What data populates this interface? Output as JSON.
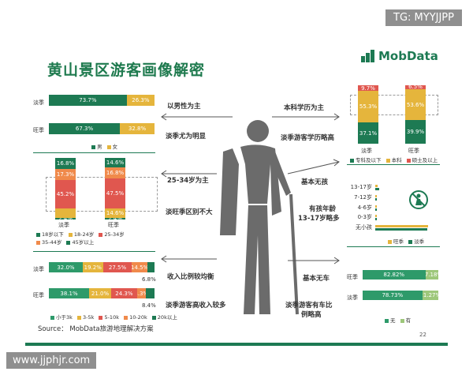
{
  "watermark_top": "TG: MYYJJPP",
  "watermark_bottom": "www.jjphjr.com",
  "title": "黄山景区游客画像解密",
  "logo_text": "MobData",
  "source": "Source： MobData旅游地理解决方案",
  "page_number": "22",
  "colors": {
    "green": "#1d7a53",
    "yellow": "#e5b53c",
    "red": "#e0574f",
    "orange": "#f08a4b",
    "lightgreen": "#9dc77a",
    "gray": "#888888",
    "teal": "#2e9a6a"
  },
  "notes": {
    "gender_main": "以男性为主",
    "gender_sub": "淡季尤为明显",
    "age_main": "25-34岁为主",
    "age_sub": "淡旺季区别不大",
    "income_main": "收入比例较均衡",
    "income_sub": "淡季游客高收入较多",
    "edu_main": "本科学历为主",
    "edu_sub": "淡季游客学历略高",
    "kids_main": "基本无孩",
    "kids_sub1": "有孩年龄",
    "kids_sub2": "13-17岁略多",
    "car_main": "基本无车",
    "car_sub1": "淡季游客有车比",
    "car_sub2": "例略高"
  },
  "chart_data": [
    {
      "type": "bar",
      "id": "gender",
      "orientation": "horizontal-stacked",
      "categories": [
        "淡季",
        "旺季"
      ],
      "series": [
        {
          "name": "男",
          "values": [
            73.7,
            67.3
          ],
          "labels": [
            "73.7%",
            "67.3%"
          ],
          "color": "#1d7a53"
        },
        {
          "name": "女",
          "values": [
            26.3,
            32.8
          ],
          "labels": [
            "26.3%",
            "32.8%"
          ],
          "color": "#e5b53c"
        }
      ]
    },
    {
      "type": "bar",
      "id": "age",
      "orientation": "vertical-stacked",
      "categories": [
        "淡季",
        "旺季"
      ],
      "series": [
        {
          "name": "18岁以下",
          "values": [
            2.4,
            2.4
          ],
          "labels": [
            "2.4%",
            "2.4%"
          ],
          "color": "#1d7a53"
        },
        {
          "name": "18-24岁",
          "values": [
            14.4,
            14.6
          ],
          "labels": [
            "",
            "14.6%"
          ],
          "color": "#e5b53c"
        },
        {
          "name": "25-34岁",
          "values": [
            45.2,
            47.5
          ],
          "labels": [
            "45.2%",
            "47.5%"
          ],
          "color": "#e0574f"
        },
        {
          "name": "35-44岁",
          "values": [
            17.3,
            16.8
          ],
          "labels": [
            "17.3%",
            "16.8%"
          ],
          "color": "#f08a4b"
        },
        {
          "name": "45岁以上",
          "values": [
            16.8,
            14.6
          ],
          "labels": [
            "16.8%",
            "14.6%"
          ],
          "color": "#1d7a53"
        }
      ]
    },
    {
      "type": "bar",
      "id": "income",
      "orientation": "horizontal-stacked",
      "categories": [
        "淡季",
        "旺季"
      ],
      "series": [
        {
          "name": "小于3k",
          "values": [
            32.0,
            38.1
          ],
          "labels": [
            "32.0%",
            "38.1%"
          ],
          "color": "#2e9a6a"
        },
        {
          "name": "3-5k",
          "values": [
            19.2,
            21.0
          ],
          "labels": [
            "19.2%",
            "21.0%"
          ],
          "color": "#e5b53c"
        },
        {
          "name": "5-10k",
          "values": [
            27.5,
            24.3
          ],
          "labels": [
            "27.5%",
            "24.3%"
          ],
          "color": "#e0574f"
        },
        {
          "name": "10-20k",
          "values": [
            14.5,
            8.3
          ],
          "labels": [
            "14.5%",
            "8.3%"
          ],
          "color": "#f08a4b"
        },
        {
          "name": "20k以上",
          "values": [
            6.8,
            8.4
          ],
          "labels": [
            "6.8%",
            "8.4%"
          ],
          "color": "#1d7a53"
        }
      ]
    },
    {
      "type": "bar",
      "id": "education",
      "orientation": "vertical-stacked",
      "categories": [
        "淡季",
        "旺季"
      ],
      "series": [
        {
          "name": "专科及以下",
          "values": [
            37.1,
            39.9
          ],
          "labels": [
            "37.1%",
            "39.9%"
          ],
          "color": "#1d7a53"
        },
        {
          "name": "本科",
          "values": [
            55.3,
            53.6
          ],
          "labels": [
            "55.3%",
            "53.6%"
          ],
          "color": "#e5b53c"
        },
        {
          "name": "硕士及以上",
          "values": [
            9.7,
            6.5
          ],
          "labels": [
            "9.7%",
            "6.5%"
          ],
          "color": "#e0574f"
        }
      ]
    },
    {
      "type": "bar",
      "id": "children",
      "orientation": "horizontal-grouped",
      "categories": [
        "13-17岁",
        "7-12岁",
        "4-6岁",
        "0-3岁",
        "无小孩"
      ],
      "series": [
        {
          "name": "旺季",
          "values": [
            4,
            3,
            2,
            2,
            88
          ],
          "color": "#e5b53c"
        },
        {
          "name": "淡季",
          "values": [
            6,
            3,
            2,
            2,
            87
          ],
          "color": "#1d7a53"
        }
      ]
    },
    {
      "type": "bar",
      "id": "car",
      "orientation": "horizontal-stacked",
      "categories": [
        "旺季",
        "淡季"
      ],
      "series": [
        {
          "name": "无",
          "values": [
            82.82,
            78.73
          ],
          "labels": [
            "82.82%",
            "78.73%"
          ],
          "color": "#2e9a6a"
        },
        {
          "name": "有",
          "values": [
            17.18,
            21.27
          ],
          "labels": [
            "17.18%",
            "21.27%"
          ],
          "color": "#9dc77a"
        }
      ]
    }
  ]
}
